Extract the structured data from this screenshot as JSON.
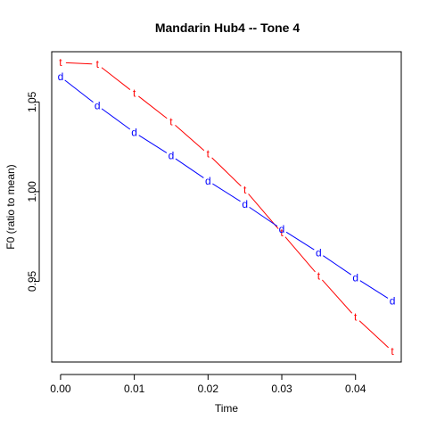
{
  "chart_data": {
    "type": "line",
    "title": "Mandarin Hub4 -- Tone 4",
    "xlabel": "Time",
    "ylabel": "F0 (ratio to mean)",
    "xlim": [
      -0.0012,
      0.0462
    ],
    "ylim": [
      0.905,
      1.078
    ],
    "x_ticks": [
      0.0,
      0.01,
      0.02,
      0.03,
      0.04
    ],
    "x_tick_labels": [
      "0.00",
      "0.01",
      "0.02",
      "0.03",
      "0.04"
    ],
    "y_ticks": [
      0.95,
      1.0,
      1.05
    ],
    "y_tick_labels": [
      "0.95",
      "1.00",
      "1.05"
    ],
    "grid": false,
    "legend": "none",
    "series": [
      {
        "marker": "t",
        "color": "#ff0000",
        "x": [
          0.0,
          0.005,
          0.01,
          0.015,
          0.02,
          0.025,
          0.03,
          0.035,
          0.04,
          0.045
        ],
        "y": [
          1.072,
          1.071,
          1.055,
          1.039,
          1.021,
          1.001,
          0.977,
          0.953,
          0.93,
          0.911
        ]
      },
      {
        "marker": "d",
        "color": "#0000ff",
        "x": [
          0.0,
          0.005,
          0.01,
          0.015,
          0.02,
          0.025,
          0.03,
          0.035,
          0.04,
          0.045
        ],
        "y": [
          1.064,
          1.048,
          1.033,
          1.02,
          1.006,
          0.993,
          0.979,
          0.966,
          0.952,
          0.939
        ]
      }
    ]
  }
}
